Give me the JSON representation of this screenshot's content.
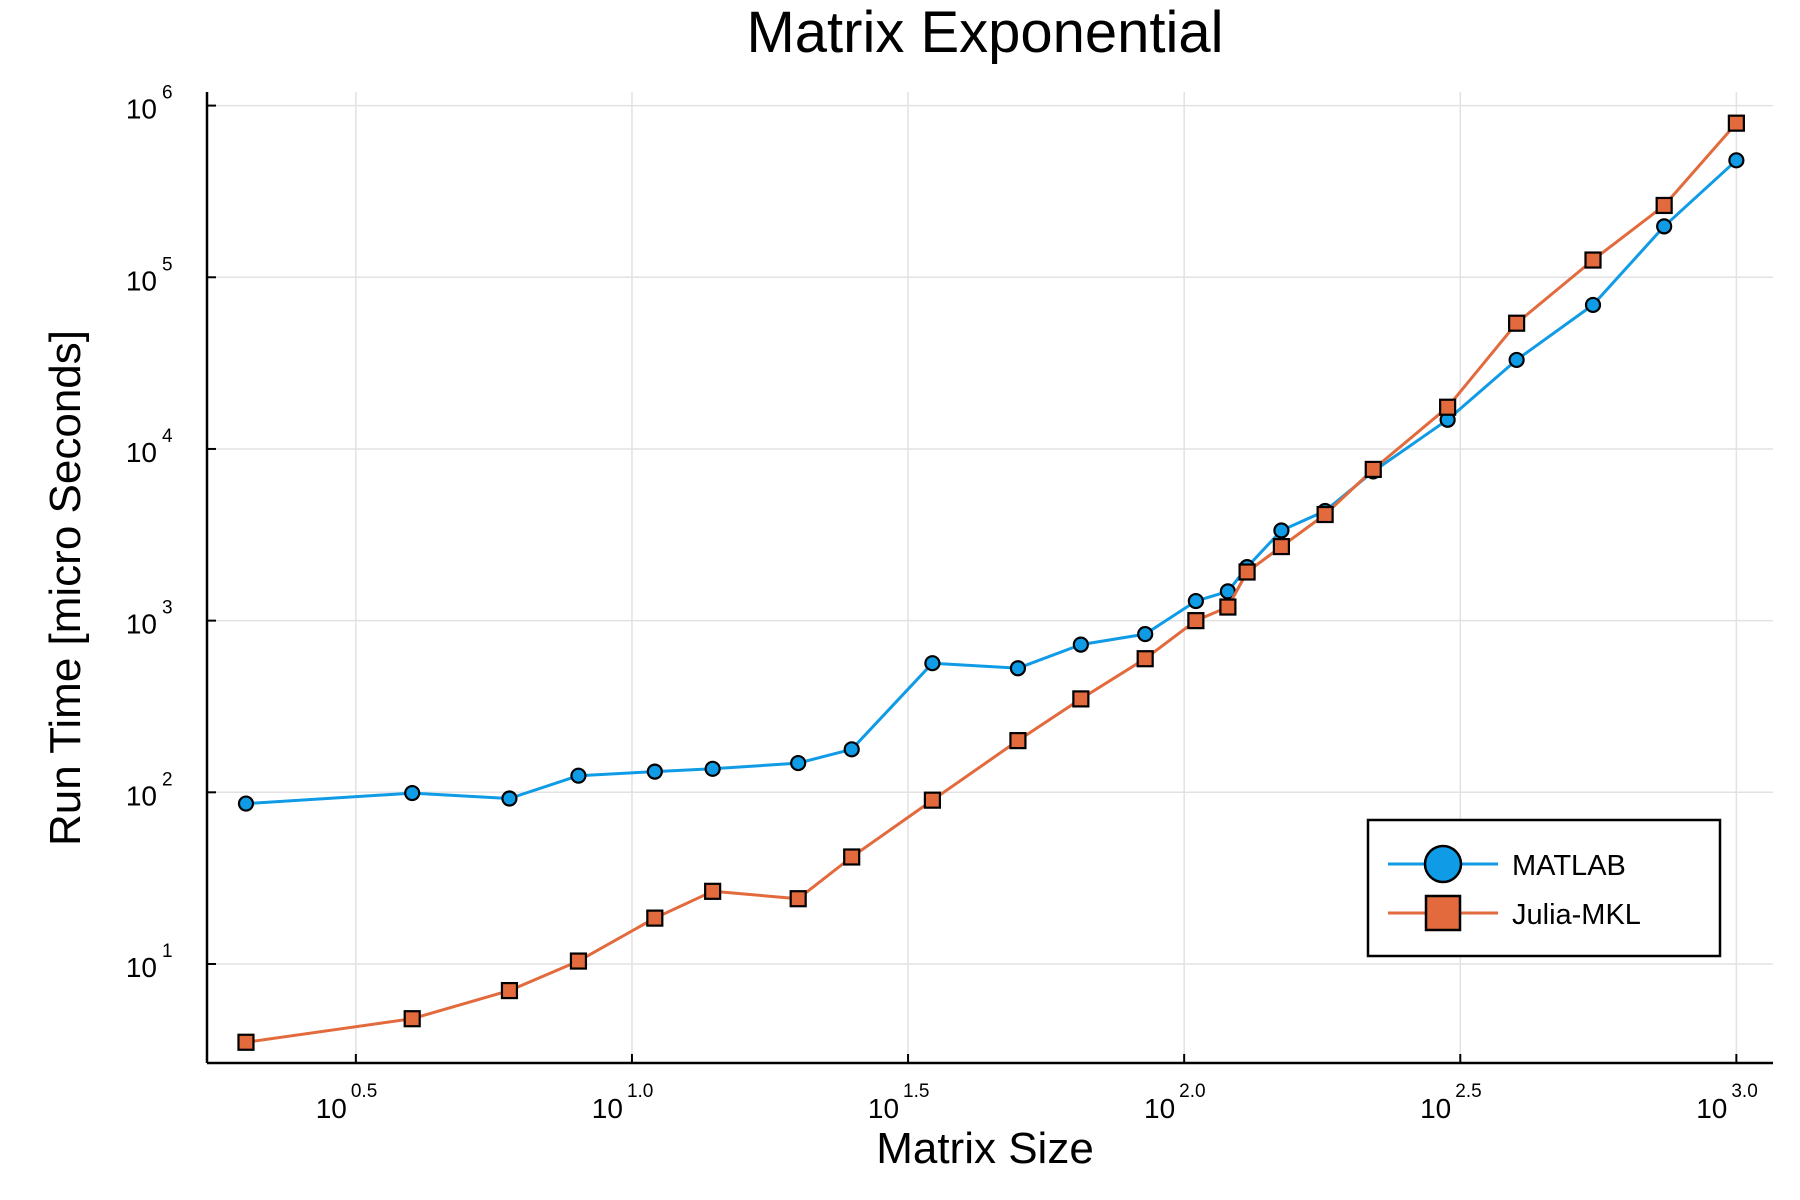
{
  "colors": {
    "matlab": "#0f9be6",
    "julia": "#e26a3c",
    "grid": "#e2e2e2",
    "axis": "#000000"
  },
  "chart_data": {
    "type": "line",
    "title": "Matrix Exponential",
    "xlabel": "Matrix Size",
    "ylabel": "Run Time  [micro Seconds]",
    "x_scale": "log10",
    "y_scale": "log10",
    "xlim": [
      1.7,
      1165
    ],
    "ylim": [
      2.65,
      1200000
    ],
    "grid": true,
    "legend_position": "bottom-right",
    "x_ticks": [
      {
        "value": 3.1623,
        "base": "10",
        "exp": "0.5"
      },
      {
        "value": 10,
        "base": "10",
        "exp": "1.0"
      },
      {
        "value": 31.623,
        "base": "10",
        "exp": "1.5"
      },
      {
        "value": 100,
        "base": "10",
        "exp": "2.0"
      },
      {
        "value": 316.23,
        "base": "10",
        "exp": "2.5"
      },
      {
        "value": 1000,
        "base": "10",
        "exp": "3.0"
      }
    ],
    "y_ticks": [
      {
        "value": 10,
        "base": "10",
        "exp": "1"
      },
      {
        "value": 100,
        "base": "10",
        "exp": "2"
      },
      {
        "value": 1000,
        "base": "10",
        "exp": "3"
      },
      {
        "value": 10000,
        "base": "10",
        "exp": "4"
      },
      {
        "value": 100000,
        "base": "10",
        "exp": "5"
      },
      {
        "value": 1000000,
        "base": "10",
        "exp": "6"
      }
    ],
    "x": [
      2,
      4,
      6,
      8,
      11,
      14,
      20,
      25,
      35,
      50,
      65,
      85,
      105,
      120,
      130,
      150,
      180,
      220,
      300,
      400,
      550,
      740,
      1000
    ],
    "series": [
      {
        "name": "MATLAB",
        "marker": "circle",
        "values": [
          86,
          99,
          92,
          125,
          132,
          137,
          148,
          178,
          565,
          528,
          725,
          835,
          1300,
          1480,
          2050,
          3350,
          4350,
          7400,
          14800,
          33000,
          69000,
          198000,
          480000
        ]
      },
      {
        "name": "Julia-MKL",
        "marker": "square",
        "values": [
          3.5,
          4.8,
          7.0,
          10.4,
          18.5,
          26.5,
          24.0,
          42.0,
          90,
          200,
          350,
          600,
          1000,
          1200,
          1920,
          2700,
          4150,
          7600,
          17500,
          54000,
          126000,
          262000,
          790000
        ]
      }
    ]
  }
}
